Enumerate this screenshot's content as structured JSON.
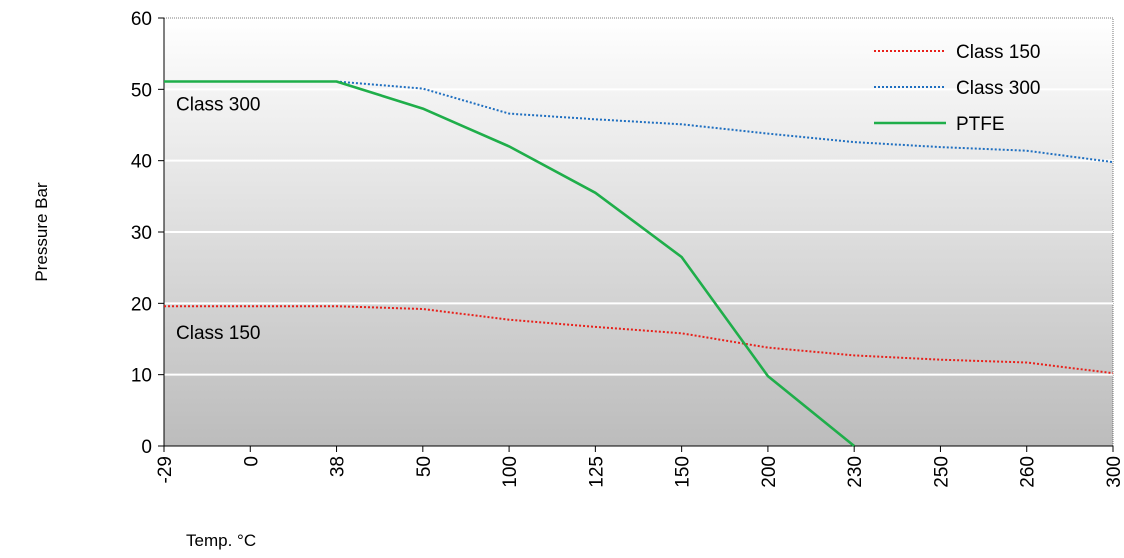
{
  "chart_data": {
    "type": "line",
    "title": "",
    "xlabel": "Temp. °C",
    "ylabel": "Pressure Bar",
    "categories": [
      "-29",
      "0",
      "38",
      "50",
      "100",
      "125",
      "150",
      "200",
      "230",
      "250",
      "260",
      "300"
    ],
    "y_ticks": [
      "0",
      "10",
      "20",
      "30",
      "40",
      "50",
      "60"
    ],
    "ylim": [
      0,
      60
    ],
    "grid": true,
    "legend_position": "top-right",
    "series": [
      {
        "name": "Class 150",
        "style": "dotted",
        "color": "#e8201a",
        "values": [
          19.6,
          19.6,
          19.6,
          19.2,
          17.7,
          16.7,
          15.8,
          13.8,
          12.7,
          12.1,
          11.7,
          10.2
        ]
      },
      {
        "name": "Class 300",
        "style": "dotted",
        "color": "#1f6fc0",
        "values": [
          51.1,
          51.1,
          51.1,
          50.1,
          46.6,
          45.8,
          45.1,
          43.8,
          42.6,
          41.9,
          41.4,
          39.8
        ]
      },
      {
        "name": "PTFE",
        "style": "solid",
        "color": "#1fae4a",
        "values": [
          51.1,
          51.1,
          51.1,
          47.3,
          42.0,
          35.5,
          26.5,
          9.8,
          0,
          null,
          null,
          null
        ]
      }
    ],
    "annotations": [
      {
        "text": "Class 300",
        "x": "-29",
        "y": 48
      },
      {
        "text": "Class 150",
        "x": "-29",
        "y": 16
      }
    ]
  }
}
